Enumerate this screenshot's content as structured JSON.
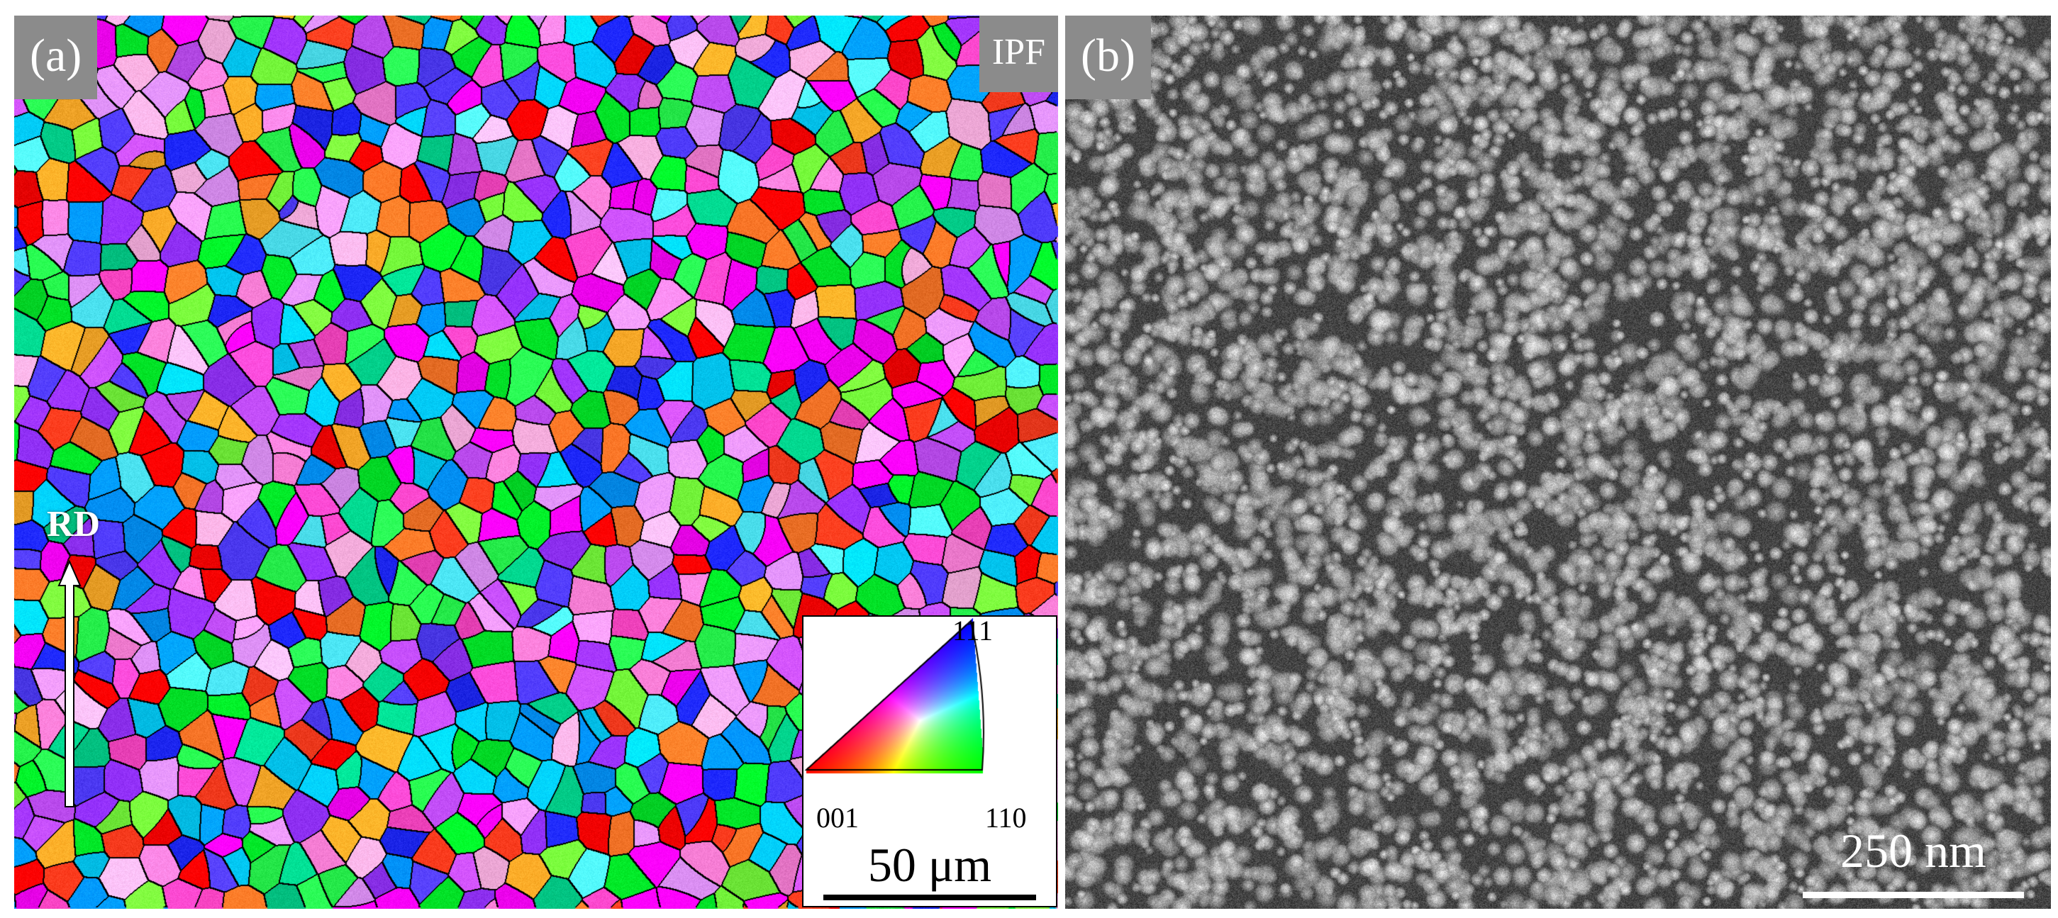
{
  "panel_a": {
    "label": "(a)",
    "map_tag": "IPF",
    "direction_label": "RD",
    "legend": {
      "corner_top": "111",
      "corner_left": "001",
      "corner_right": "110",
      "scale_text": "50 μm"
    }
  },
  "panel_b": {
    "label": "(b)",
    "scale_text": "250 nm"
  }
}
